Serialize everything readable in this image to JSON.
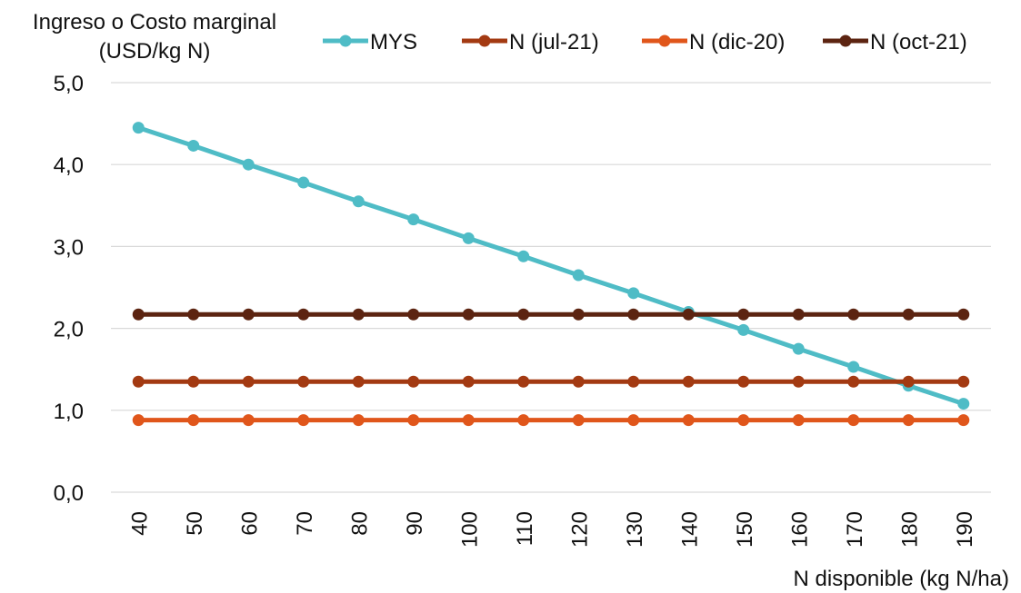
{
  "chart_data": {
    "type": "line",
    "ylabel_line1": "Ingreso o Costo marginal",
    "ylabel_line2": "(USD/kg N)",
    "xlabel": "N disponible (kg N/ha)",
    "x": [
      40,
      50,
      60,
      70,
      80,
      90,
      100,
      110,
      120,
      130,
      140,
      150,
      160,
      170,
      180,
      190
    ],
    "y_ticks": [
      "0,0",
      "1,0",
      "2,0",
      "3,0",
      "4,0",
      "5,0"
    ],
    "ylim": [
      0,
      5
    ],
    "grid": true,
    "legend_position": "top",
    "series": [
      {
        "name": "MYS",
        "color": "#4FBCC6",
        "values": [
          4.45,
          4.23,
          4.0,
          3.78,
          3.55,
          3.33,
          3.1,
          2.88,
          2.65,
          2.43,
          2.2,
          1.98,
          1.75,
          1.53,
          1.3,
          1.08
        ]
      },
      {
        "name": "N (jul-21)",
        "color": "#A33A12",
        "values": [
          1.35,
          1.35,
          1.35,
          1.35,
          1.35,
          1.35,
          1.35,
          1.35,
          1.35,
          1.35,
          1.35,
          1.35,
          1.35,
          1.35,
          1.35,
          1.35
        ]
      },
      {
        "name": "N (dic-20)",
        "color": "#E0561B",
        "values": [
          0.88,
          0.88,
          0.88,
          0.88,
          0.88,
          0.88,
          0.88,
          0.88,
          0.88,
          0.88,
          0.88,
          0.88,
          0.88,
          0.88,
          0.88,
          0.88
        ]
      },
      {
        "name": "N (oct-21)",
        "color": "#5C2411",
        "values": [
          2.17,
          2.17,
          2.17,
          2.17,
          2.17,
          2.17,
          2.17,
          2.17,
          2.17,
          2.17,
          2.17,
          2.17,
          2.17,
          2.17,
          2.17,
          2.17
        ]
      }
    ]
  }
}
